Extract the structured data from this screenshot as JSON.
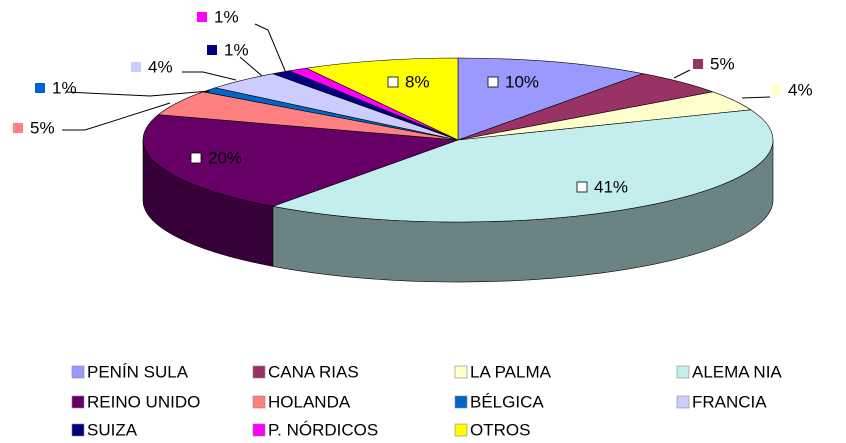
{
  "chart_data": {
    "type": "pie3d",
    "categories": [
      "PENÍN SULA",
      "CANA RIAS",
      "LA PALMA",
      "ALEMA NIA",
      "REINO UNIDO",
      "HOLANDA",
      "BÉLGICA",
      "FRANCIA",
      "SUIZA",
      "P. NÓRDICOS",
      "OTROS"
    ],
    "values": [
      10,
      5,
      4,
      41,
      20,
      5,
      1,
      4,
      1,
      1,
      8
    ],
    "value_labels": [
      "10%",
      "5%",
      "4%",
      "41%",
      "20%",
      "5%",
      "1%",
      "4%",
      "1%",
      "1%",
      "8%"
    ],
    "colors": [
      "#9999ff",
      "#993366",
      "#ffffcc",
      "#c4eeee",
      "#660066",
      "#ff8080",
      "#0066cc",
      "#ccccff",
      "#000080",
      "#ff00ff",
      "#ffff00"
    ],
    "legend": "bottom"
  }
}
